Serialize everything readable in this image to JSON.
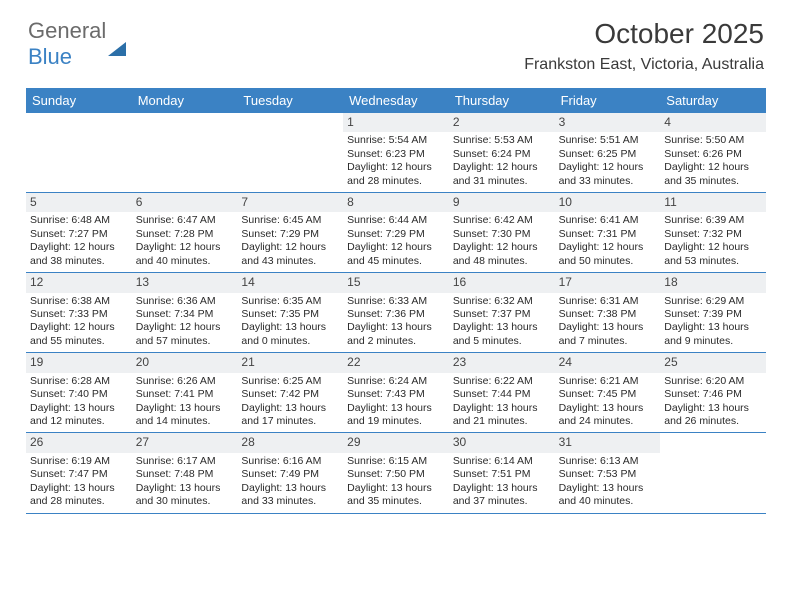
{
  "logo": {
    "part1": "General",
    "part2": "Blue"
  },
  "title": "October 2025",
  "location": "Frankston East, Victoria, Australia",
  "header_bg": "#3b82c4",
  "day_names": [
    "Sunday",
    "Monday",
    "Tuesday",
    "Wednesday",
    "Thursday",
    "Friday",
    "Saturday"
  ],
  "weeks": [
    [
      {
        "day": "",
        "lines": []
      },
      {
        "day": "",
        "lines": []
      },
      {
        "day": "",
        "lines": []
      },
      {
        "day": "1",
        "lines": [
          "Sunrise: 5:54 AM",
          "Sunset: 6:23 PM",
          "Daylight: 12 hours",
          "and 28 minutes."
        ]
      },
      {
        "day": "2",
        "lines": [
          "Sunrise: 5:53 AM",
          "Sunset: 6:24 PM",
          "Daylight: 12 hours",
          "and 31 minutes."
        ]
      },
      {
        "day": "3",
        "lines": [
          "Sunrise: 5:51 AM",
          "Sunset: 6:25 PM",
          "Daylight: 12 hours",
          "and 33 minutes."
        ]
      },
      {
        "day": "4",
        "lines": [
          "Sunrise: 5:50 AM",
          "Sunset: 6:26 PM",
          "Daylight: 12 hours",
          "and 35 minutes."
        ]
      }
    ],
    [
      {
        "day": "5",
        "lines": [
          "Sunrise: 6:48 AM",
          "Sunset: 7:27 PM",
          "Daylight: 12 hours",
          "and 38 minutes."
        ]
      },
      {
        "day": "6",
        "lines": [
          "Sunrise: 6:47 AM",
          "Sunset: 7:28 PM",
          "Daylight: 12 hours",
          "and 40 minutes."
        ]
      },
      {
        "day": "7",
        "lines": [
          "Sunrise: 6:45 AM",
          "Sunset: 7:29 PM",
          "Daylight: 12 hours",
          "and 43 minutes."
        ]
      },
      {
        "day": "8",
        "lines": [
          "Sunrise: 6:44 AM",
          "Sunset: 7:29 PM",
          "Daylight: 12 hours",
          "and 45 minutes."
        ]
      },
      {
        "day": "9",
        "lines": [
          "Sunrise: 6:42 AM",
          "Sunset: 7:30 PM",
          "Daylight: 12 hours",
          "and 48 minutes."
        ]
      },
      {
        "day": "10",
        "lines": [
          "Sunrise: 6:41 AM",
          "Sunset: 7:31 PM",
          "Daylight: 12 hours",
          "and 50 minutes."
        ]
      },
      {
        "day": "11",
        "lines": [
          "Sunrise: 6:39 AM",
          "Sunset: 7:32 PM",
          "Daylight: 12 hours",
          "and 53 minutes."
        ]
      }
    ],
    [
      {
        "day": "12",
        "lines": [
          "Sunrise: 6:38 AM",
          "Sunset: 7:33 PM",
          "Daylight: 12 hours",
          "and 55 minutes."
        ]
      },
      {
        "day": "13",
        "lines": [
          "Sunrise: 6:36 AM",
          "Sunset: 7:34 PM",
          "Daylight: 12 hours",
          "and 57 minutes."
        ]
      },
      {
        "day": "14",
        "lines": [
          "Sunrise: 6:35 AM",
          "Sunset: 7:35 PM",
          "Daylight: 13 hours",
          "and 0 minutes."
        ]
      },
      {
        "day": "15",
        "lines": [
          "Sunrise: 6:33 AM",
          "Sunset: 7:36 PM",
          "Daylight: 13 hours",
          "and 2 minutes."
        ]
      },
      {
        "day": "16",
        "lines": [
          "Sunrise: 6:32 AM",
          "Sunset: 7:37 PM",
          "Daylight: 13 hours",
          "and 5 minutes."
        ]
      },
      {
        "day": "17",
        "lines": [
          "Sunrise: 6:31 AM",
          "Sunset: 7:38 PM",
          "Daylight: 13 hours",
          "and 7 minutes."
        ]
      },
      {
        "day": "18",
        "lines": [
          "Sunrise: 6:29 AM",
          "Sunset: 7:39 PM",
          "Daylight: 13 hours",
          "and 9 minutes."
        ]
      }
    ],
    [
      {
        "day": "19",
        "lines": [
          "Sunrise: 6:28 AM",
          "Sunset: 7:40 PM",
          "Daylight: 13 hours",
          "and 12 minutes."
        ]
      },
      {
        "day": "20",
        "lines": [
          "Sunrise: 6:26 AM",
          "Sunset: 7:41 PM",
          "Daylight: 13 hours",
          "and 14 minutes."
        ]
      },
      {
        "day": "21",
        "lines": [
          "Sunrise: 6:25 AM",
          "Sunset: 7:42 PM",
          "Daylight: 13 hours",
          "and 17 minutes."
        ]
      },
      {
        "day": "22",
        "lines": [
          "Sunrise: 6:24 AM",
          "Sunset: 7:43 PM",
          "Daylight: 13 hours",
          "and 19 minutes."
        ]
      },
      {
        "day": "23",
        "lines": [
          "Sunrise: 6:22 AM",
          "Sunset: 7:44 PM",
          "Daylight: 13 hours",
          "and 21 minutes."
        ]
      },
      {
        "day": "24",
        "lines": [
          "Sunrise: 6:21 AM",
          "Sunset: 7:45 PM",
          "Daylight: 13 hours",
          "and 24 minutes."
        ]
      },
      {
        "day": "25",
        "lines": [
          "Sunrise: 6:20 AM",
          "Sunset: 7:46 PM",
          "Daylight: 13 hours",
          "and 26 minutes."
        ]
      }
    ],
    [
      {
        "day": "26",
        "lines": [
          "Sunrise: 6:19 AM",
          "Sunset: 7:47 PM",
          "Daylight: 13 hours",
          "and 28 minutes."
        ]
      },
      {
        "day": "27",
        "lines": [
          "Sunrise: 6:17 AM",
          "Sunset: 7:48 PM",
          "Daylight: 13 hours",
          "and 30 minutes."
        ]
      },
      {
        "day": "28",
        "lines": [
          "Sunrise: 6:16 AM",
          "Sunset: 7:49 PM",
          "Daylight: 13 hours",
          "and 33 minutes."
        ]
      },
      {
        "day": "29",
        "lines": [
          "Sunrise: 6:15 AM",
          "Sunset: 7:50 PM",
          "Daylight: 13 hours",
          "and 35 minutes."
        ]
      },
      {
        "day": "30",
        "lines": [
          "Sunrise: 6:14 AM",
          "Sunset: 7:51 PM",
          "Daylight: 13 hours",
          "and 37 minutes."
        ]
      },
      {
        "day": "31",
        "lines": [
          "Sunrise: 6:13 AM",
          "Sunset: 7:53 PM",
          "Daylight: 13 hours",
          "and 40 minutes."
        ]
      },
      {
        "day": "",
        "lines": []
      }
    ]
  ]
}
